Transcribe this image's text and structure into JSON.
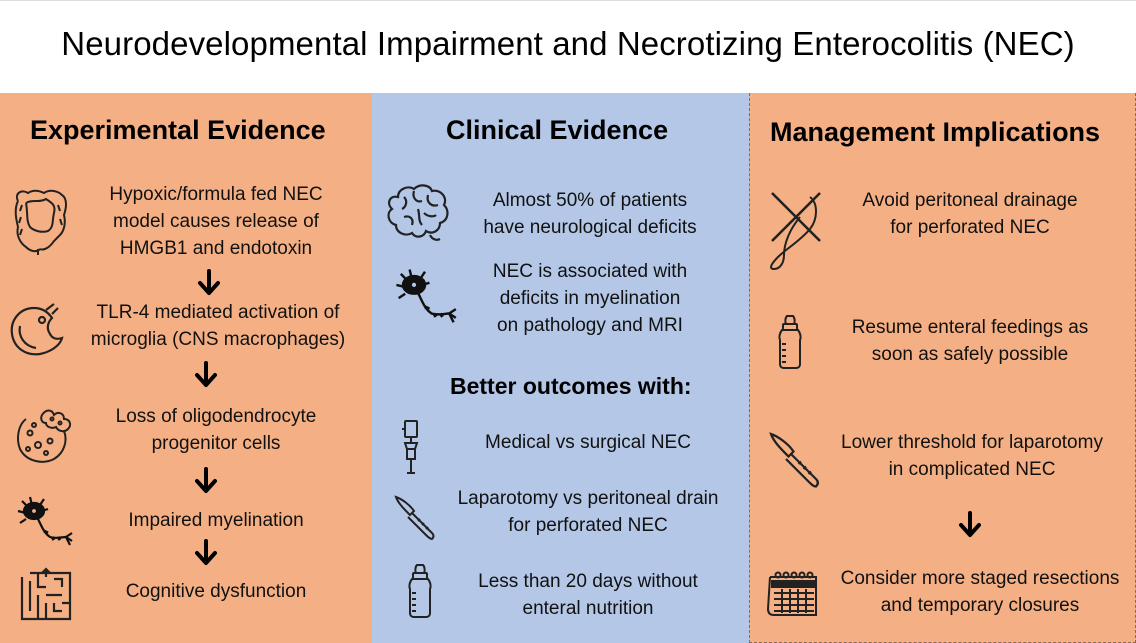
{
  "title": "Neurodevelopmental Impairment and Necrotizing Enterocolitis (NEC)",
  "colors": {
    "left_bg": "#f4b084",
    "mid_bg": "#b4c7e7",
    "right_bg": "#f4b084",
    "arrow": "#000000"
  },
  "experimental": {
    "heading": "Experimental Evidence",
    "steps": [
      {
        "icon": "intestine-icon",
        "text": "Hypoxic/formula fed NEC\nmodel causes release of\nHMGB1 and endotoxin"
      },
      {
        "icon": "microglia-icon",
        "text": "TLR-4 mediated activation of\nmicroglia (CNS macrophages)"
      },
      {
        "icon": "cells-icon",
        "text": "Loss of oligodendrocyte\nprogenitor cells"
      },
      {
        "icon": "neuron-icon",
        "text": "Impaired myelination"
      },
      {
        "icon": "maze-brain-icon",
        "text": "Cognitive dysfunction"
      }
    ]
  },
  "clinical": {
    "heading": "Clinical Evidence",
    "items": [
      {
        "icon": "brain-icon",
        "text": "Almost 50% of patients\nhave neurological deficits"
      },
      {
        "icon": "neuron-icon",
        "text": "NEC is associated with\ndeficits in myelination\non pathology and MRI"
      }
    ],
    "subheading": "Better outcomes with:",
    "outcomes": [
      {
        "icon": "iv-drip-icon",
        "text": "Medical vs surgical NEC"
      },
      {
        "icon": "scalpel-icon",
        "text": "Laparotomy vs peritoneal drain\nfor perforated NEC"
      },
      {
        "icon": "baby-bottle-icon",
        "text": "Less than 20 days without\nenteral nutrition"
      }
    ]
  },
  "management": {
    "heading": "Management Implications",
    "items": [
      {
        "icon": "no-drain-icon",
        "text": "Avoid peritoneal drainage\nfor perforated NEC"
      },
      {
        "icon": "baby-bottle-icon",
        "text": "Resume enteral feedings as\nsoon as safely possible"
      },
      {
        "icon": "scalpel-icon",
        "text": "Lower threshold for laparotomy\nin complicated NEC"
      },
      {
        "icon": "calendar-icon",
        "text": "Consider more staged resections\nand temporary closures"
      }
    ]
  }
}
